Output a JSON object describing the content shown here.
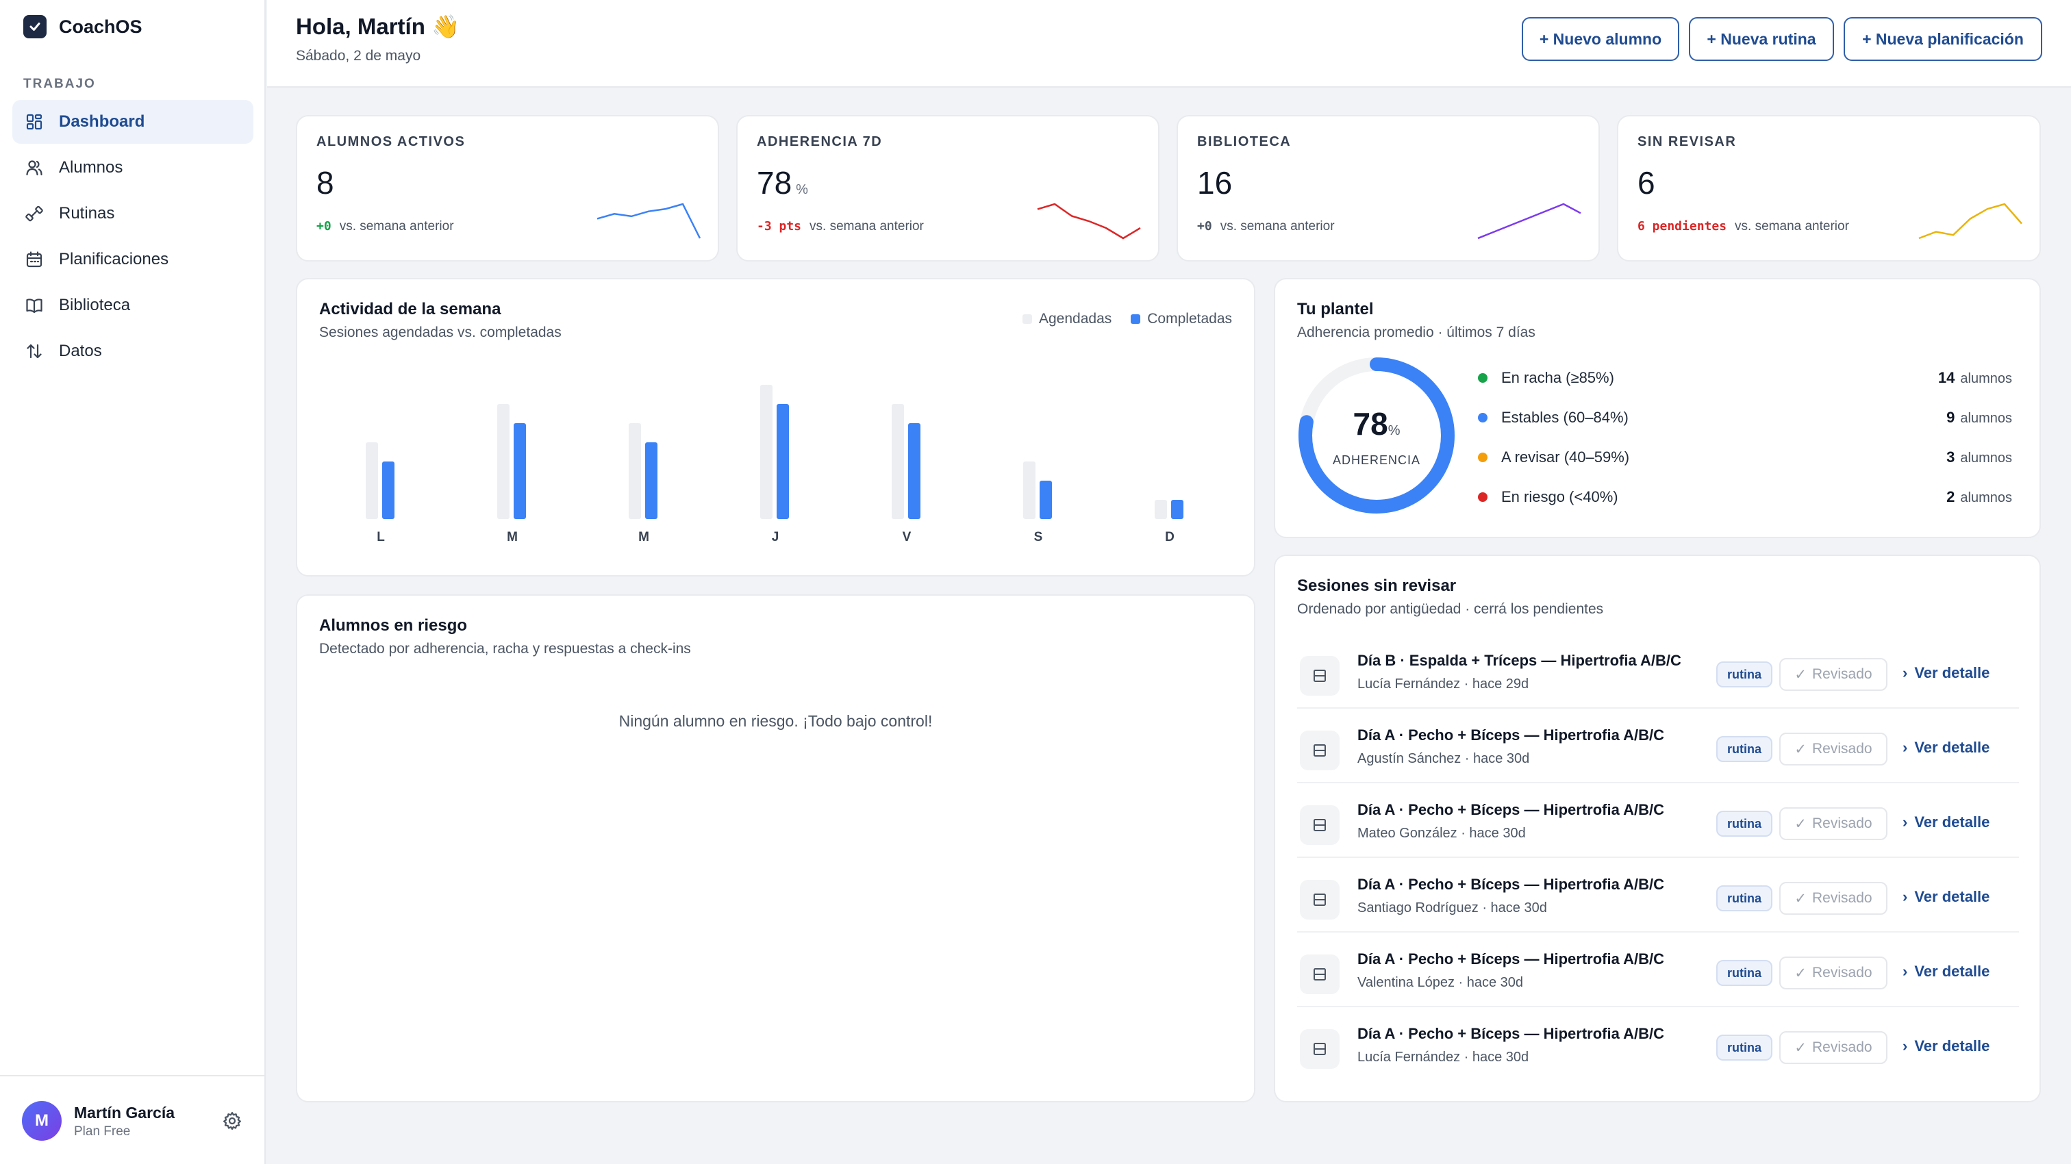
{
  "app": {
    "name": "CoachOS"
  },
  "sidebar": {
    "section_label": "TRABAJO",
    "items": [
      {
        "label": "Dashboard",
        "icon": "dashboard-icon"
      },
      {
        "label": "Alumnos",
        "icon": "users-icon"
      },
      {
        "label": "Rutinas",
        "icon": "dumbbell-icon"
      },
      {
        "label": "Planificaciones",
        "icon": "calendar-icon"
      },
      {
        "label": "Biblioteca",
        "icon": "book-icon"
      },
      {
        "label": "Datos",
        "icon": "sort-arrows-icon"
      }
    ],
    "user": {
      "initial": "M",
      "name": "Martín García",
      "plan": "Plan Free"
    }
  },
  "header": {
    "greeting": "Hola, Martín 👋",
    "date": "Sábado, 2 de mayo",
    "buttons": [
      "+ Nuevo alumno",
      "+ Nueva rutina",
      "+ Nueva planificación"
    ]
  },
  "kpis": [
    {
      "label": "ALUMNOS ACTIVOS",
      "value": "8",
      "unit": "",
      "delta": "+0",
      "delta_color": "#16a34a",
      "delta_suffix": "vs. semana anterior",
      "spark_color": "#3b82f6",
      "spark": [
        6,
        6.2,
        6.1,
        6.3,
        6.4,
        6.6,
        5.2
      ]
    },
    {
      "label": "ADHERENCIA 7D",
      "value": "78",
      "unit": "%",
      "delta": "-3 pts",
      "delta_color": "#dc2626",
      "delta_suffix": "vs. semana anterior",
      "spark_color": "#dc2626",
      "spark": [
        8,
        8.3,
        7.6,
        7.3,
        6.9,
        6.3,
        6.9
      ]
    },
    {
      "label": "BIBLIOTECA",
      "value": "16",
      "unit": "",
      "delta": "+0",
      "delta_color": "#4b5563",
      "delta_suffix": "vs. semana anterior",
      "spark_color": "#7c3aed",
      "spark": [
        4,
        4.6,
        5.2,
        5.8,
        6.4,
        7,
        6.2
      ]
    },
    {
      "label": "SIN REVISAR",
      "value": "6",
      "unit": "",
      "delta": "6 pendientes",
      "delta_color": "#dc2626",
      "delta_suffix": "vs. semana anterior",
      "spark_color": "#eab308",
      "spark": [
        4,
        4.4,
        4.2,
        5.2,
        5.8,
        6.1,
        4.9
      ]
    }
  ],
  "activity": {
    "title": "Actividad de la semana",
    "subtitle": "Sesiones agendadas vs. completadas",
    "chart_data": {
      "type": "bar",
      "categories": [
        "L",
        "M",
        "M",
        "J",
        "V",
        "S",
        "D"
      ],
      "series": [
        {
          "name": "Agendadas",
          "color": "#eceef1",
          "values": [
            4,
            6,
            5,
            7,
            6,
            3,
            1
          ]
        },
        {
          "name": "Completadas",
          "color": "#3b82f6",
          "values": [
            3,
            5,
            4,
            6,
            5,
            2,
            1
          ]
        }
      ],
      "ylim": [
        0,
        7
      ]
    }
  },
  "plantel": {
    "title": "Tu plantel",
    "subtitle": "Adherencia promedio · últimos 7 días",
    "value": "78",
    "unit": "%",
    "label": "ADHERENCIA",
    "fraction": 0.78,
    "ring_color": "#3b82f6",
    "rows": [
      {
        "label": "En racha (≥85%)",
        "count": "14",
        "unit": "alumnos",
        "color": "#16a34a"
      },
      {
        "label": "Estables (60–84%)",
        "count": "9",
        "unit": "alumnos",
        "color": "#3b82f6"
      },
      {
        "label": "A revisar (40–59%)",
        "count": "3",
        "unit": "alumnos",
        "color": "#f59e0b"
      },
      {
        "label": "En riesgo (<40%)",
        "count": "2",
        "unit": "alumnos",
        "color": "#dc2626"
      }
    ]
  },
  "risk": {
    "title": "Alumnos en riesgo",
    "subtitle": "Detectado por adherencia, racha y respuestas a check-ins",
    "empty": "Ningún alumno en riesgo. ¡Todo bajo control!"
  },
  "sessions": {
    "title": "Sesiones sin revisar",
    "subtitle": "Ordenado por antigüedad · cerrá los pendientes",
    "badge": "rutina",
    "reviewed_label": "Revisado",
    "link_label": "Ver detalle",
    "items": [
      {
        "title": "Día B · Espalda + Tríceps — Hipertrofia A/B/C",
        "meta": "Lucía Fernández · hace 29d"
      },
      {
        "title": "Día A · Pecho + Bíceps — Hipertrofia A/B/C",
        "meta": "Agustín Sánchez · hace 30d"
      },
      {
        "title": "Día A · Pecho + Bíceps — Hipertrofia A/B/C",
        "meta": "Mateo González · hace 30d"
      },
      {
        "title": "Día A · Pecho + Bíceps — Hipertrofia A/B/C",
        "meta": "Santiago Rodríguez · hace 30d"
      },
      {
        "title": "Día A · Pecho + Bíceps — Hipertrofia A/B/C",
        "meta": "Valentina López · hace 30d"
      },
      {
        "title": "Día A · Pecho + Bíceps — Hipertrofia A/B/C",
        "meta": "Lucía Fernández · hace 30d"
      }
    ]
  }
}
